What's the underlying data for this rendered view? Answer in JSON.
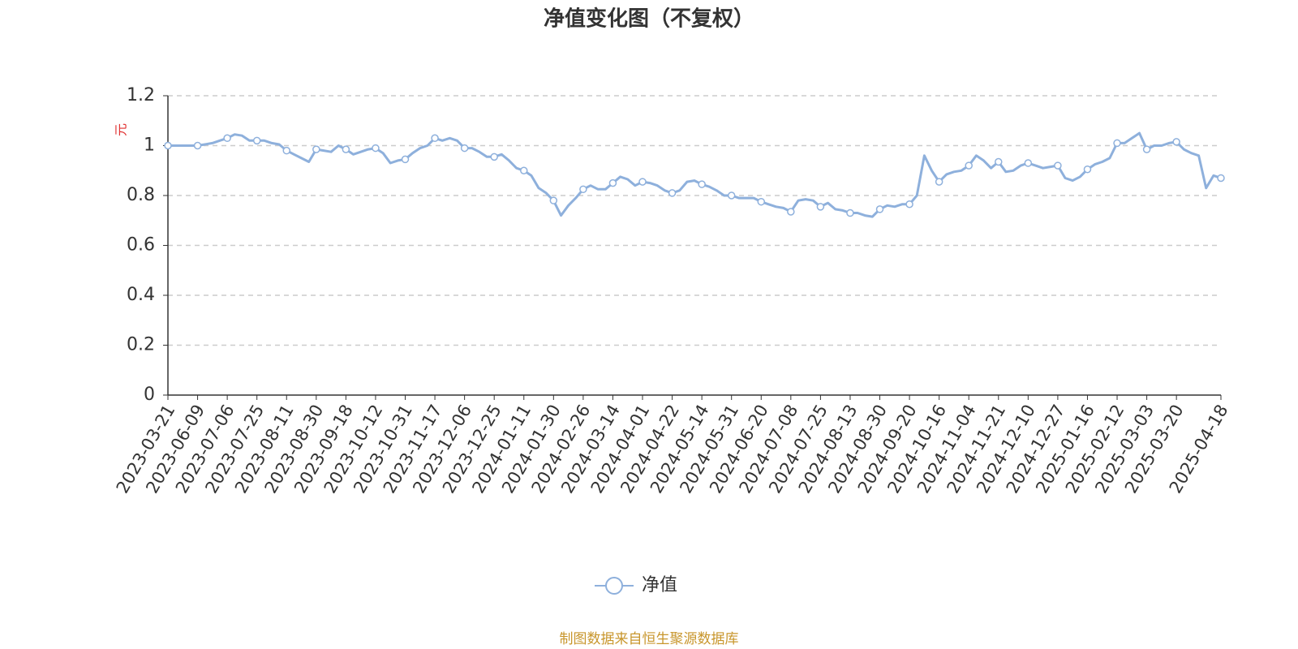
{
  "chart_data": {
    "type": "line",
    "title": "净值变化图（不复权）",
    "y_label": "元",
    "footer": "制图数据来自恒生聚源数据库",
    "categories": [
      "2023-03-21",
      null,
      null,
      null,
      "2023-06-09",
      null,
      null,
      null,
      "2023-07-06",
      null,
      null,
      null,
      "2023-07-25",
      null,
      null,
      null,
      "2023-08-11",
      null,
      null,
      null,
      "2023-08-30",
      null,
      null,
      null,
      "2023-09-18",
      null,
      null,
      null,
      "2023-10-12",
      null,
      null,
      null,
      "2023-10-31",
      null,
      null,
      null,
      "2023-11-17",
      null,
      null,
      null,
      "2023-12-06",
      null,
      null,
      null,
      "2023-12-25",
      null,
      null,
      null,
      "2024-01-11",
      null,
      null,
      null,
      "2024-01-30",
      null,
      null,
      null,
      "2024-02-26",
      null,
      null,
      null,
      "2024-03-14",
      null,
      null,
      null,
      "2024-04-01",
      null,
      null,
      null,
      "2024-04-22",
      null,
      null,
      null,
      "2024-05-14",
      null,
      null,
      null,
      "2024-05-31",
      null,
      null,
      null,
      "2024-06-20",
      null,
      null,
      null,
      "2024-07-08",
      null,
      null,
      null,
      "2024-07-25",
      null,
      null,
      null,
      "2024-08-13",
      null,
      null,
      null,
      "2024-08-30",
      null,
      null,
      null,
      "2024-09-20",
      null,
      null,
      null,
      "2024-10-16",
      null,
      null,
      null,
      "2024-11-04",
      null,
      null,
      null,
      "2024-11-21",
      null,
      null,
      null,
      "2024-12-10",
      null,
      null,
      null,
      "2024-12-27",
      null,
      null,
      null,
      "2025-01-16",
      null,
      null,
      null,
      "2025-02-12",
      null,
      null,
      null,
      "2025-03-03",
      null,
      null,
      null,
      "2025-03-20",
      null,
      null,
      null,
      null,
      null,
      "2025-04-18"
    ],
    "series": [
      {
        "name": "净值",
        "color": "#8eb0dc",
        "values": [
          1.0,
          1.0,
          1.0,
          1.0,
          1.0,
          1.005,
          1.01,
          1.02,
          1.03,
          1.045,
          1.04,
          1.02,
          1.02,
          1.02,
          1.01,
          1.005,
          0.98,
          0.965,
          0.95,
          0.935,
          0.985,
          0.98,
          0.975,
          1.0,
          0.985,
          0.965,
          0.975,
          0.985,
          0.99,
          0.97,
          0.93,
          0.94,
          0.945,
          0.97,
          0.99,
          1.0,
          1.03,
          1.02,
          1.03,
          1.02,
          0.99,
          0.99,
          0.975,
          0.955,
          0.955,
          0.965,
          0.94,
          0.91,
          0.9,
          0.88,
          0.83,
          0.81,
          0.78,
          0.72,
          0.76,
          0.79,
          0.825,
          0.84,
          0.825,
          0.825,
          0.85,
          0.875,
          0.865,
          0.84,
          0.855,
          0.85,
          0.84,
          0.82,
          0.81,
          0.82,
          0.855,
          0.86,
          0.845,
          0.835,
          0.82,
          0.8,
          0.8,
          0.79,
          0.79,
          0.79,
          0.775,
          0.765,
          0.755,
          0.75,
          0.735,
          0.78,
          0.785,
          0.78,
          0.755,
          0.77,
          0.745,
          0.74,
          0.73,
          0.73,
          0.72,
          0.715,
          0.745,
          0.76,
          0.755,
          0.765,
          0.765,
          0.8,
          0.96,
          0.9,
          0.855,
          0.885,
          0.895,
          0.9,
          0.92,
          0.96,
          0.94,
          0.91,
          0.935,
          0.895,
          0.9,
          0.92,
          0.93,
          0.92,
          0.91,
          0.915,
          0.92,
          0.87,
          0.86,
          0.875,
          0.905,
          0.925,
          0.935,
          0.95,
          1.01,
          1.01,
          1.03,
          1.05,
          0.985,
          1.0,
          1.0,
          1.01,
          1.015,
          0.985,
          0.97,
          0.96,
          0.83,
          0.88,
          0.87
        ]
      }
    ],
    "ylim": [
      0,
      1.2
    ],
    "yticks": [
      0,
      0.2,
      0.4,
      0.6,
      0.8,
      1,
      1.2
    ],
    "grid": true
  }
}
